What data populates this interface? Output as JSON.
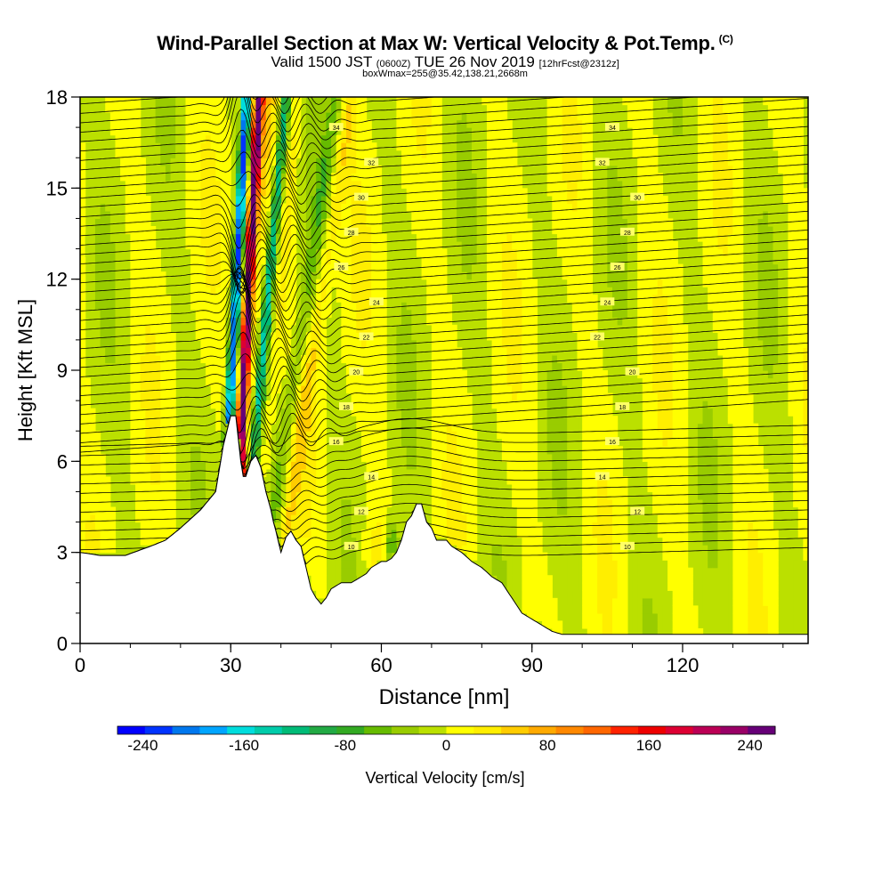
{
  "header": {
    "title": "Wind-Parallel Section at Max W: Vertical Velocity & Pot.Temp.",
    "copyright": "(C)",
    "valid_prefix": "Valid 1500 JST",
    "valid_utc": "(0600Z)",
    "valid_date": "TUE 26 Nov 2019",
    "forecast": "[12hrFcst@2312z]",
    "box_info": "boxWmax=255@35.42,138.21,2668m"
  },
  "colors": {
    "scale": [
      "#0000ff",
      "#0033ff",
      "#0077ee",
      "#00a5ff",
      "#00dddd",
      "#00ccaa",
      "#00bb77",
      "#22aa44",
      "#33aa22",
      "#66bb00",
      "#99cc00",
      "#bbe000",
      "#ffff00",
      "#ffee00",
      "#ffcc00",
      "#ffaa00",
      "#ff8800",
      "#ff6600",
      "#ff2200",
      "#ee0000",
      "#dd0033",
      "#bb0055",
      "#990066",
      "#660077"
    ],
    "background": "#bbe000",
    "terrain": "#ffffff"
  },
  "chart_data": {
    "type": "heatmap",
    "xlabel": "Distance [nm]",
    "ylabel": "Height [Kft MSL]",
    "xlim": [
      0,
      145
    ],
    "ylim": [
      0,
      18
    ],
    "x_ticks": [
      0,
      30,
      60,
      90,
      120
    ],
    "y_ticks": [
      0,
      3,
      6,
      9,
      12,
      15,
      18
    ],
    "colorbar": {
      "label": "Vertical Velocity [cm/s]",
      "ticks": [
        -240,
        -160,
        -80,
        0,
        80,
        160,
        240
      ],
      "range": [
        -260,
        260
      ]
    },
    "terrain_profile": {
      "x": [
        0,
        4,
        9,
        14,
        17,
        20,
        24,
        27,
        28.5,
        30,
        31,
        32,
        32.5,
        33,
        34,
        35,
        36,
        37,
        38,
        38.5,
        39,
        40,
        41,
        42,
        43,
        44,
        45,
        46,
        47,
        48,
        49,
        50,
        52,
        54,
        56,
        57,
        58,
        59,
        60,
        61,
        62,
        63,
        64,
        65,
        66,
        67,
        68,
        69,
        70,
        71,
        72,
        73,
        74,
        76,
        78,
        80,
        82,
        84,
        86,
        88,
        90,
        92,
        94,
        96,
        98,
        100,
        110,
        120,
        130,
        140,
        145
      ],
      "h": [
        3.0,
        2.9,
        2.9,
        3.2,
        3.4,
        3.8,
        4.4,
        5.0,
        6.5,
        7.5,
        7.5,
        6.0,
        5.5,
        5.5,
        6.0,
        6.2,
        5.8,
        5.0,
        4.4,
        4.0,
        3.7,
        3.0,
        3.5,
        3.7,
        3.4,
        3.2,
        2.5,
        1.8,
        1.5,
        1.3,
        1.5,
        1.8,
        2.0,
        2.0,
        2.2,
        2.3,
        2.5,
        2.6,
        2.7,
        2.7,
        2.8,
        3.0,
        3.4,
        4.0,
        4.2,
        4.6,
        4.6,
        4.0,
        3.8,
        3.4,
        3.4,
        3.4,
        3.2,
        3.0,
        2.7,
        2.5,
        2.2,
        2.0,
        1.5,
        1.0,
        0.8,
        0.6,
        0.4,
        0.3,
        0.3,
        0.3,
        0.3,
        0.3,
        0.3,
        0.3,
        0.3
      ]
    },
    "theta_label_values": [
      "34",
      "32",
      "30",
      "28",
      "26",
      "24",
      "22",
      "20",
      "18",
      "16",
      "14",
      "12",
      "10"
    ],
    "max_w_cm_s": 255
  }
}
